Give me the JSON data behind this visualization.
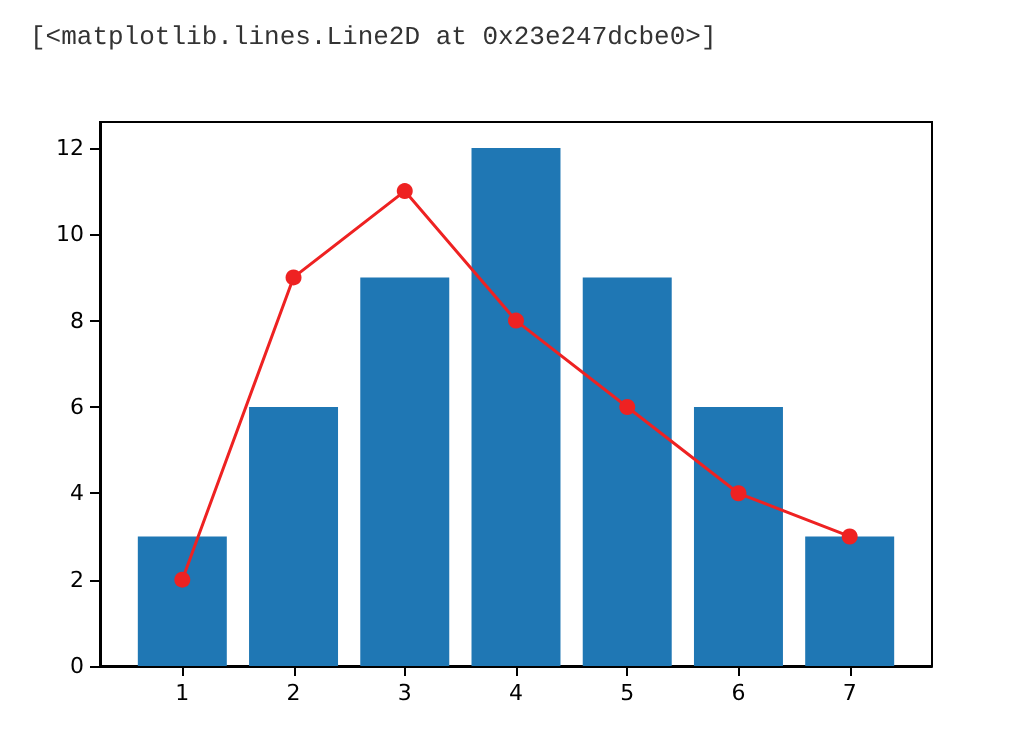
{
  "chart_data": {
    "type": "bar",
    "annotations": [
      "[<matplotlib.lines.Line2D at 0x23e247dcbe0>]"
    ],
    "x": [
      1,
      2,
      3,
      4,
      5,
      6,
      7
    ],
    "series": [
      {
        "color": "#1f77b4",
        "values": [
          3,
          6,
          9,
          12,
          9,
          6,
          3
        ]
      },
      {
        "type": "line",
        "color": "#ee2222",
        "values": [
          2,
          9,
          11,
          8,
          6,
          4,
          3
        ],
        "marker": "circle"
      }
    ],
    "xlim": [
      0.26,
      7.74
    ],
    "xticks": [
      1,
      2,
      3,
      4,
      5,
      6,
      7
    ],
    "ylim": [
      0,
      12.6
    ],
    "yticks": [
      0,
      2,
      4,
      6,
      8,
      10,
      12
    ],
    "grid": false
  }
}
